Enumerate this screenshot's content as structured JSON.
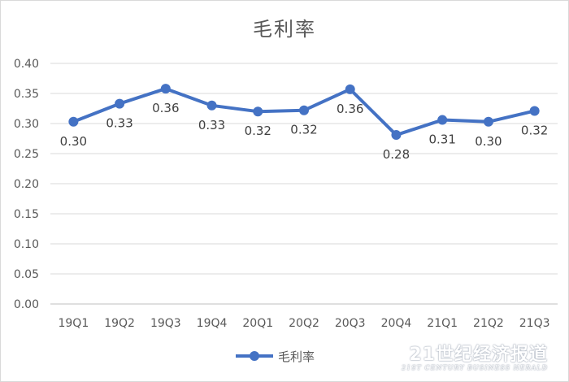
{
  "chart_data": {
    "type": "line",
    "title": "毛利率",
    "categories": [
      "19Q1",
      "19Q2",
      "19Q3",
      "19Q4",
      "20Q1",
      "20Q2",
      "20Q3",
      "20Q4",
      "21Q1",
      "21Q2",
      "21Q3"
    ],
    "series": [
      {
        "name": "毛利率",
        "values": [
          0.303,
          0.333,
          0.358,
          0.33,
          0.32,
          0.322,
          0.357,
          0.281,
          0.306,
          0.303,
          0.321
        ],
        "labels": [
          "0.30",
          "0.33",
          "0.36",
          "0.33",
          "0.32",
          "0.32",
          "0.36",
          "0.28",
          "0.31",
          "0.30",
          "0.32"
        ],
        "color": "#4472c4"
      }
    ],
    "y_ticks": [
      "0.00",
      "0.05",
      "0.10",
      "0.15",
      "0.20",
      "0.25",
      "0.30",
      "0.35",
      "0.40"
    ],
    "ylim": [
      0,
      0.4
    ],
    "grid": true,
    "legend_position": "bottom"
  },
  "watermark": {
    "main": "21世纪经济报道",
    "sub": "21ST CENTURY BUSINESS HERALD"
  }
}
